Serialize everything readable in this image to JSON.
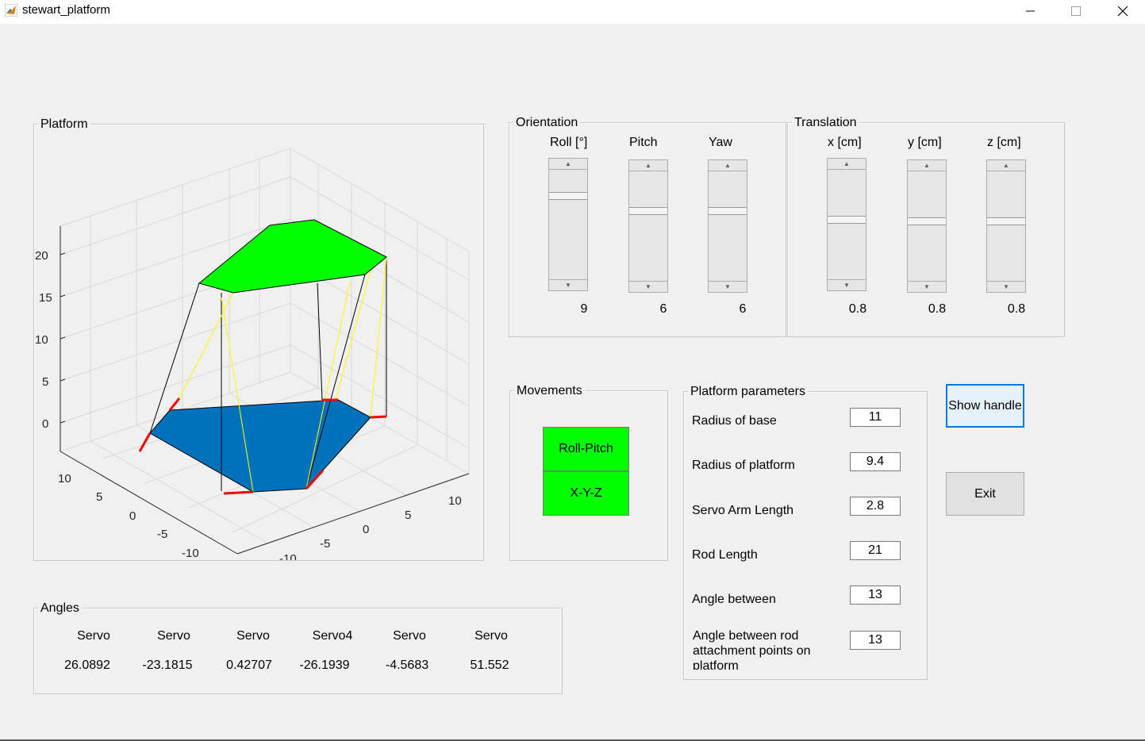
{
  "window": {
    "title": "stewart_platform"
  },
  "platform_panel": {
    "title": "Platform",
    "z_ticks": [
      "20",
      "15",
      "10",
      "5",
      "0"
    ],
    "x_ticks": [
      "10",
      "5",
      "0",
      "-5",
      "-10"
    ],
    "y_ticks": [
      "-10",
      "-5",
      "0",
      "5",
      "10"
    ]
  },
  "orientation": {
    "title": "Orientation",
    "sliders": [
      {
        "label": "Roll [°]",
        "value": "9",
        "position": 0.22
      },
      {
        "label": "Pitch",
        "value": "6",
        "position": 0.35
      },
      {
        "label": "Yaw",
        "value": "6",
        "position": 0.35
      }
    ]
  },
  "translation": {
    "title": "Translation",
    "sliders": [
      {
        "label": "x [cm]",
        "value": "0.8",
        "position": 0.45
      },
      {
        "label": "y [cm]",
        "value": "0.8",
        "position": 0.45
      },
      {
        "label": "z [cm]",
        "value": "0.8",
        "position": 0.45
      }
    ]
  },
  "movements": {
    "title": "Movements",
    "buttons": [
      "Roll-Pitch",
      "X-Y-Z"
    ],
    "button_color": "#00ff00"
  },
  "parameters": {
    "title": "Platform parameters",
    "items": [
      {
        "label": "Radius of base",
        "value": "11"
      },
      {
        "label": "Radius of platform",
        "value": "9.4"
      },
      {
        "label": "Servo Arm Length",
        "value": "2.8"
      },
      {
        "label": "Rod Length",
        "value": "21"
      },
      {
        "label": "Angle between",
        "value": "13"
      },
      {
        "label": "Angle between rod attachment points on platform",
        "value": "13"
      }
    ]
  },
  "buttons": {
    "show_handle": "Show handle",
    "exit": "Exit"
  },
  "angles": {
    "title": "Angles",
    "headers": [
      "Servo",
      "Servo",
      "Servo",
      "Servo4",
      "Servo",
      "Servo"
    ],
    "values": [
      "26.0892",
      "-23.1815",
      "0.42707",
      "-26.1939",
      "-4.5683",
      "51.552"
    ]
  },
  "colors": {
    "top_plate": "#00ff00",
    "base_plate": "#0072bd",
    "servo_arm": "#ff0000",
    "rod": "#ffff00"
  }
}
